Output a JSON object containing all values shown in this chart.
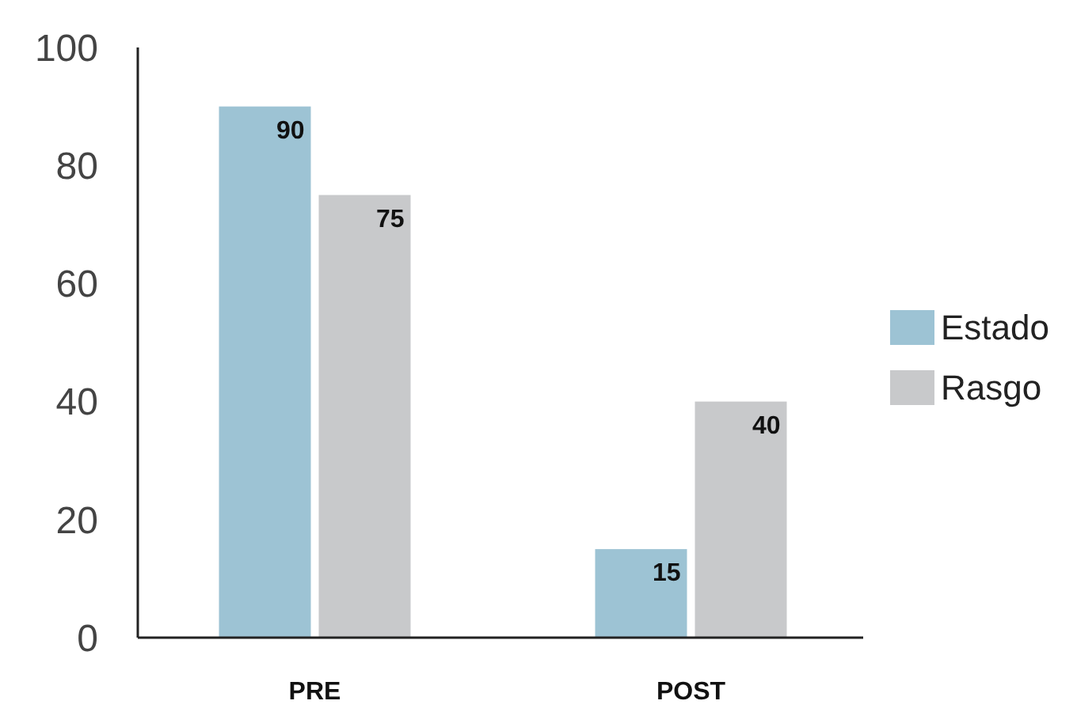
{
  "chart_data": {
    "type": "bar",
    "categories": [
      "PRE",
      "POST"
    ],
    "series": [
      {
        "name": "Estado",
        "color": "#9dc3d4",
        "values": [
          90,
          15
        ]
      },
      {
        "name": "Rasgo",
        "color": "#c8c9cb",
        "values": [
          75,
          40
        ]
      }
    ],
    "ylim": [
      0,
      100
    ],
    "yticks": [
      0,
      20,
      40,
      60,
      80,
      100
    ],
    "data_labels": true,
    "legend": "right",
    "grid": false
  }
}
